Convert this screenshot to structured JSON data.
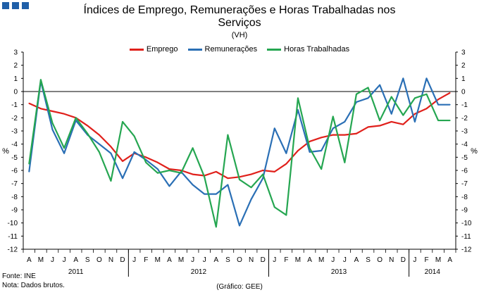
{
  "header": {
    "title_line1": "Índices de Emprego, Remunerações e Horas Trabalhadas nos",
    "title_line2": "Serviços",
    "subtitle": "(VH)"
  },
  "footer": {
    "source": "Fonte: INE",
    "note": "Nota: Dados brutos.",
    "chart_credit": "(Gráfico: GEE)"
  },
  "colors": {
    "emprego": "#e0201b",
    "remuneracoes": "#2a6fb5",
    "horas": "#25a651",
    "axis": "#000000"
  },
  "chart_data": {
    "type": "line",
    "title": "Índices de Emprego, Remunerações e Horas Trabalhadas nos Serviços",
    "ylabel_left": "%",
    "ylabel_right": "%",
    "ylim": [
      -12,
      3
    ],
    "yticks": [
      3,
      2,
      1,
      0,
      -1,
      -2,
      -3,
      -4,
      -5,
      -6,
      -7,
      -8,
      -9,
      -10,
      -11,
      -12
    ],
    "categories": [
      "A",
      "M",
      "J",
      "J",
      "A",
      "S",
      "O",
      "N",
      "D",
      "J",
      "F",
      "M",
      "A",
      "M",
      "J",
      "J",
      "A",
      "S",
      "O",
      "N",
      "D",
      "J",
      "F",
      "M",
      "A",
      "M",
      "J",
      "J",
      "A",
      "S",
      "O",
      "N",
      "D",
      "J",
      "F",
      "M",
      "A"
    ],
    "years": [
      {
        "label": "2011",
        "start": 0,
        "end": 8
      },
      {
        "label": "2012",
        "start": 9,
        "end": 20
      },
      {
        "label": "2013",
        "start": 21,
        "end": 32
      },
      {
        "label": "2014",
        "start": 33,
        "end": 36
      }
    ],
    "series": [
      {
        "name": "Emprego",
        "color": "#e0201b",
        "values": [
          -0.9,
          -1.3,
          -1.5,
          -1.7,
          -2.0,
          -2.6,
          -3.3,
          -4.2,
          -5.3,
          -4.7,
          -5.0,
          -5.4,
          -5.9,
          -6.0,
          -6.3,
          -6.4,
          -6.1,
          -6.6,
          -6.5,
          -6.3,
          -6.0,
          -6.1,
          -5.5,
          -4.5,
          -3.8,
          -3.5,
          -3.3,
          -3.3,
          -3.2,
          -2.7,
          -2.6,
          -2.3,
          -2.5,
          -1.7,
          -1.3,
          -0.6,
          -0.1
        ]
      },
      {
        "name": "Remunerações",
        "color": "#2a6fb5",
        "values": [
          -6.1,
          0.8,
          -2.9,
          -4.7,
          -2.2,
          -3.3,
          -4.0,
          -4.7,
          -6.6,
          -4.6,
          -5.2,
          -5.9,
          -7.2,
          -6.1,
          -7.1,
          -7.8,
          -7.8,
          -7.1,
          -10.2,
          -8.2,
          -6.6,
          -2.8,
          -4.7,
          -1.4,
          -4.6,
          -4.5,
          -2.8,
          -2.3,
          -0.8,
          -0.5,
          0.5,
          -1.7,
          1.0,
          -2.3,
          1.0,
          -1.0,
          -1.0
        ]
      },
      {
        "name": "Horas Trabalhadas",
        "color": "#25a651",
        "values": [
          -5.5,
          0.9,
          -2.4,
          -4.3,
          -2.0,
          -3.2,
          -4.6,
          -6.8,
          -2.3,
          -3.4,
          -5.4,
          -6.2,
          -6.0,
          -6.2,
          -4.3,
          -6.5,
          -10.3,
          -3.3,
          -6.7,
          -7.3,
          -6.3,
          -8.8,
          -9.4,
          -0.5,
          -4.3,
          -5.9,
          -1.9,
          -5.4,
          -0.2,
          0.3,
          -2.2,
          -0.4,
          -1.8,
          -0.5,
          -0.2,
          -2.2,
          -2.2
        ]
      }
    ]
  }
}
